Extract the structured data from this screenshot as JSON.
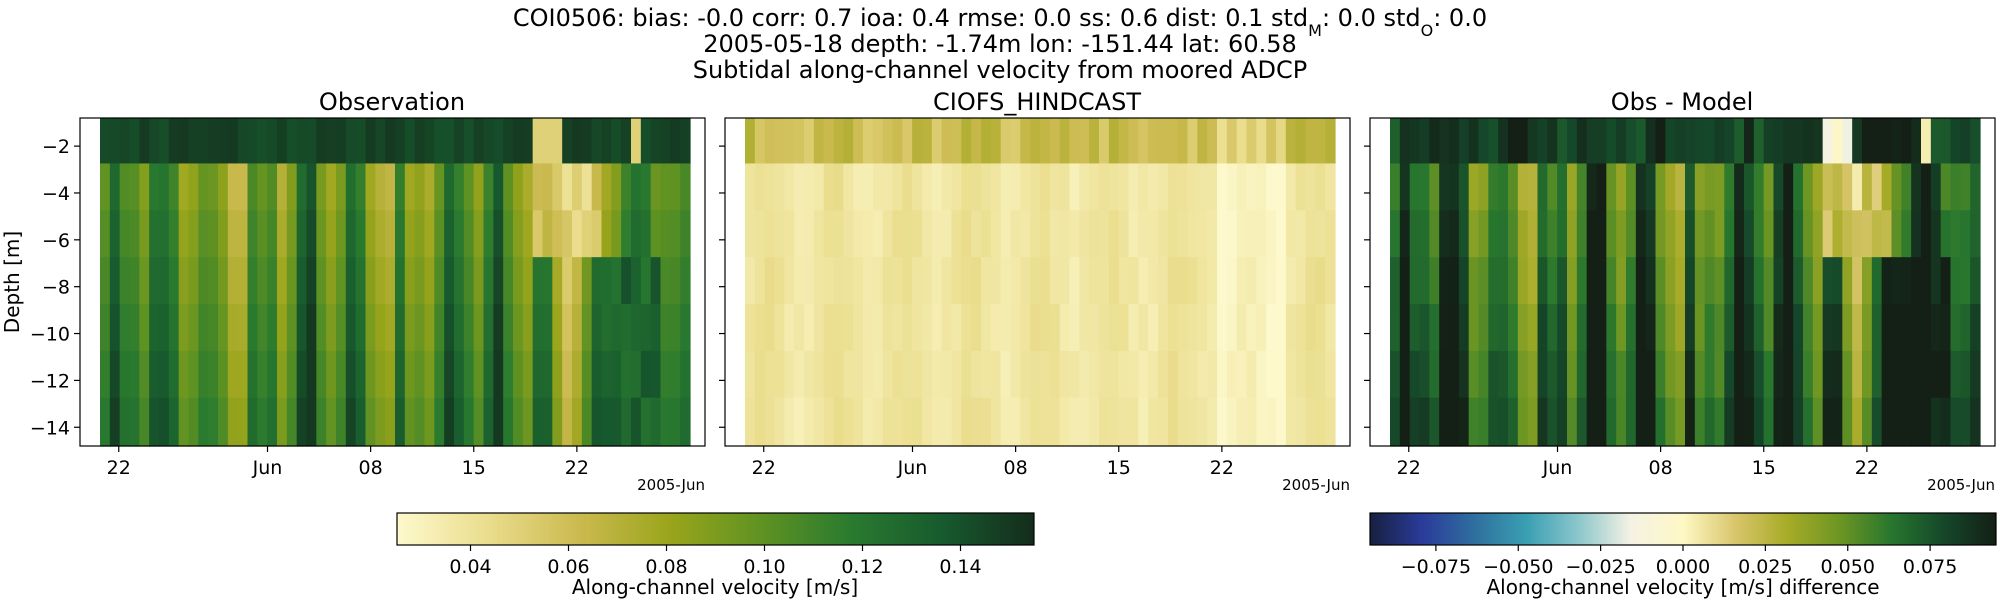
{
  "figure": {
    "title_line1": "COI0506: bias: -0.0  corr: 0.7  ioa: 0.4  rmse: 0.0  ss: 0.6  dist: 0.1  std",
    "title_line1_std_m_sub": "M",
    "title_line1_mid": ": 0.0  std",
    "title_line1_std_o_sub": "O",
    "title_line1_end": ": 0.0",
    "title_line2": "2005-05-18 depth: -1.74m lon: -151.44 lat: 60.58",
    "title_line3": "Subtidal along-channel velocity from moored ADCP"
  },
  "chart_data": [
    {
      "type": "heatmap",
      "title": "Observation",
      "ylabel": "Depth [m]",
      "x_ticks": [
        "22",
        "Jun",
        "08",
        "15",
        "22"
      ],
      "x_offset_label": "2005-Jun",
      "y_ticks": [
        "−2",
        "−4",
        "−6",
        "−8",
        "−10",
        "−12",
        "−14"
      ],
      "y_tick_values": [
        -2,
        -4,
        -6,
        -8,
        -10,
        -12,
        -14
      ],
      "ylim": [
        -14.8,
        -0.8
      ],
      "depth_bins": [
        -1.74,
        -3.74,
        -5.74,
        -7.74,
        -9.74,
        -11.74,
        -13.74
      ],
      "n_time_steps": 60,
      "colormap": "speed",
      "vmin": 0.025,
      "vmax": 0.155,
      "approx_range_m_s": [
        0.03,
        0.15
      ]
    },
    {
      "type": "heatmap",
      "title": "CIOFS_HINDCAST",
      "x_ticks": [
        "22",
        "Jun",
        "08",
        "15",
        "22"
      ],
      "x_offset_label": "2005-Jun",
      "ylim": [
        -14.8,
        -0.8
      ],
      "n_time_steps": 60,
      "colormap": "speed",
      "vmin": 0.025,
      "vmax": 0.155,
      "approx_range_m_s": [
        0.025,
        0.07
      ]
    },
    {
      "type": "heatmap",
      "title": "Obs - Model",
      "x_ticks": [
        "22",
        "Jun",
        "08",
        "15",
        "22"
      ],
      "x_offset_label": "2005-Jun",
      "ylim": [
        -14.8,
        -0.8
      ],
      "n_time_steps": 60,
      "colormap": "diverging",
      "vmin": -0.095,
      "vmax": 0.095,
      "approx_range_m_s": [
        -0.02,
        0.095
      ]
    }
  ],
  "colorbars": [
    {
      "label": "Along-channel velocity [m/s]",
      "ticks": [
        "0.04",
        "0.06",
        "0.08",
        "0.10",
        "0.12",
        "0.14"
      ],
      "tick_values": [
        0.04,
        0.06,
        0.08,
        0.1,
        0.12,
        0.14
      ],
      "vmin": 0.025,
      "vmax": 0.155,
      "colors": [
        "#fdf9cd",
        "#eadd8d",
        "#cbba4f",
        "#9aa51b",
        "#5f9222",
        "#297a2f",
        "#175a2e",
        "#142c1c"
      ]
    },
    {
      "label": "Along-channel velocity [m/s] difference",
      "ticks": [
        "−0.075",
        "−0.050",
        "−0.025",
        "0.000",
        "0.025",
        "0.050",
        "0.075"
      ],
      "tick_values": [
        -0.075,
        -0.05,
        -0.025,
        0,
        0.025,
        0.05,
        0.075
      ],
      "vmin": -0.095,
      "vmax": 0.095,
      "colors": [
        "#17203f",
        "#2a3b9a",
        "#2f6f9e",
        "#3a9fb2",
        "#8cc7cc",
        "#f5f2e4",
        "#fef8c4",
        "#d9c66c",
        "#a7ab27",
        "#6d9623",
        "#27762e",
        "#15472a",
        "#141f15"
      ]
    }
  ]
}
